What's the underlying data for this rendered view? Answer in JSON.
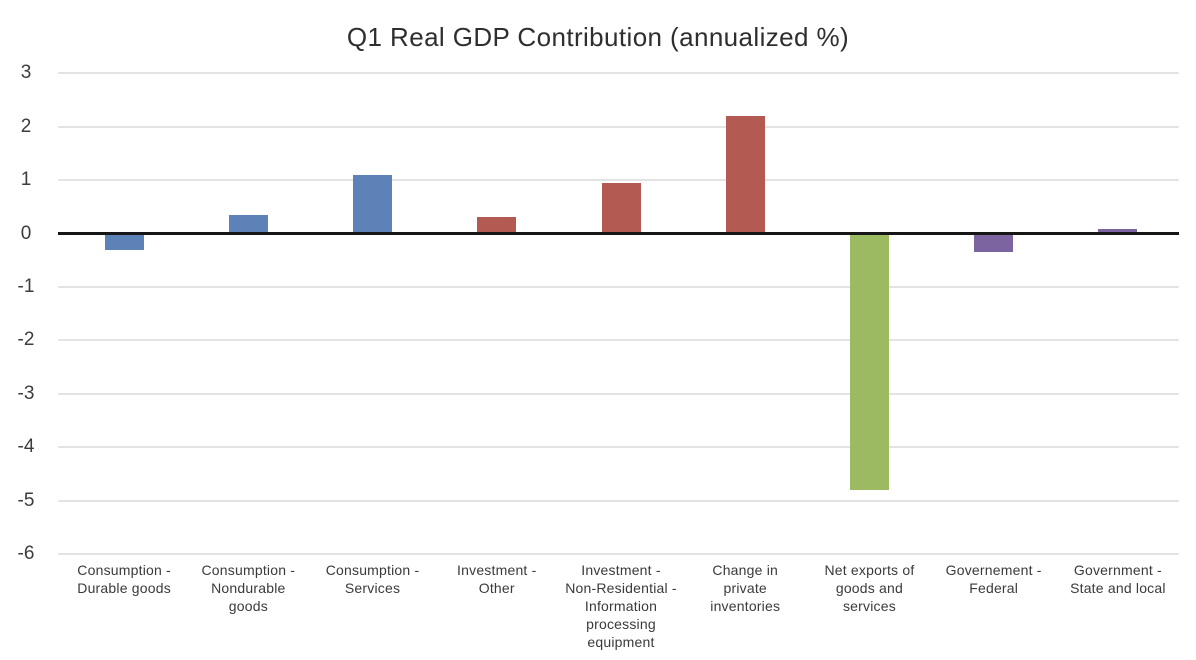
{
  "chart_data": {
    "type": "bar",
    "title": "Q1 Real GDP Contribution (annualized %)",
    "categories": [
      "Consumption -\nDurable goods",
      "Consumption -\nNondurable\ngoods",
      "Consumption -\nServices",
      "Investment -\nOther",
      "Investment -\nNon-Residential -\nInformation\nprocessing\nequipment",
      "Change in\nprivate\ninventories",
      "Net exports of\ngoods and\nservices",
      "Governement -\nFederal",
      "Government -\nState and local"
    ],
    "values": [
      -0.3,
      0.35,
      1.1,
      0.3,
      0.95,
      2.2,
      -4.8,
      -0.35,
      0.08
    ],
    "bar_colors": [
      "#5D82B8",
      "#5D82B8",
      "#5D82B8",
      "#B35A53",
      "#B35A53",
      "#B35A53",
      "#9CBA62",
      "#7C64A0",
      "#7C64A0"
    ],
    "color_groups": {
      "consumption": "#5D82B8",
      "investment_and_inventories": "#B35A53",
      "net_exports": "#9CBA62",
      "government": "#7C64A0"
    },
    "xlabel": "",
    "ylabel": "",
    "ylim": [
      -6,
      3
    ],
    "yticks": [
      3,
      2,
      1,
      0,
      -1,
      -2,
      -3,
      -4,
      -5,
      -6
    ],
    "grid": "horizontal",
    "legend": "none",
    "zero_line": true,
    "background_color": "#FFFFFF",
    "gridline_color": "#E3E3E3",
    "zero_line_color": "#161616",
    "text_color": "#3C3C3C"
  }
}
